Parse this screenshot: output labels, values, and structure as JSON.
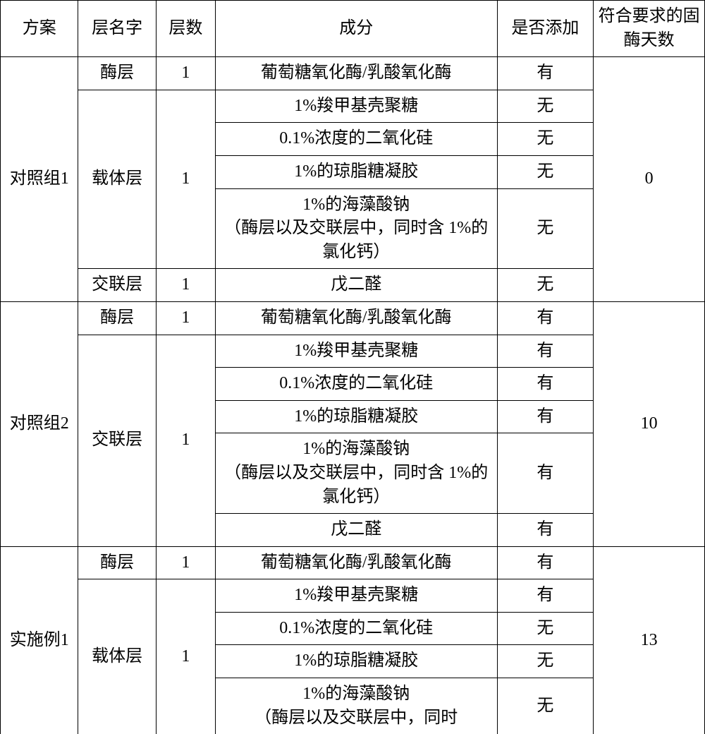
{
  "header": {
    "plan": "方案",
    "layer_name": "层名字",
    "layer_count": "层数",
    "component": "成分",
    "added": "是否添加",
    "days": "符合要求的固酶天数"
  },
  "groups": [
    {
      "plan": "对照组1",
      "days": "0",
      "layers": [
        {
          "name": "酶层",
          "count": "1",
          "rows": [
            {
              "component": "葡萄糖氧化酶/乳酸氧化酶",
              "added": "有"
            }
          ]
        },
        {
          "name": "载体层",
          "count": "1",
          "rows": [
            {
              "component": "1%羧甲基壳聚糖",
              "added": "无"
            },
            {
              "component": "0.1%浓度的二氧化硅",
              "added": "无"
            },
            {
              "component": "1%的琼脂糖凝胶",
              "added": "无"
            },
            {
              "component": "1%的海藻酸钠\n（酶层以及交联层中，同时含 1%的氯化钙）",
              "added": "无"
            }
          ]
        },
        {
          "name": "交联层",
          "count": "1",
          "rows": [
            {
              "component": "戊二醛",
              "added": "无"
            }
          ]
        }
      ]
    },
    {
      "plan": "对照组2",
      "days": "10",
      "layers": [
        {
          "name": "酶层",
          "count": "1",
          "rows": [
            {
              "component": "葡萄糖氧化酶/乳酸氧化酶",
              "added": "有"
            }
          ]
        },
        {
          "name": "交联层",
          "count": "1",
          "rows": [
            {
              "component": "1%羧甲基壳聚糖",
              "added": "有"
            },
            {
              "component": "0.1%浓度的二氧化硅",
              "added": "有"
            },
            {
              "component": "1%的琼脂糖凝胶",
              "added": "有"
            },
            {
              "component": "1%的海藻酸钠\n（酶层以及交联层中，同时含 1%的氯化钙）",
              "added": "有"
            },
            {
              "component": "戊二醛",
              "added": "有"
            }
          ]
        }
      ]
    },
    {
      "plan": "实施例1",
      "days": "13",
      "layers": [
        {
          "name": "酶层",
          "count": "1",
          "rows": [
            {
              "component": "葡萄糖氧化酶/乳酸氧化酶",
              "added": "有"
            }
          ]
        },
        {
          "name": "载体层",
          "count": "1",
          "rows": [
            {
              "component": "1%羧甲基壳聚糖",
              "added": "有"
            },
            {
              "component": "0.1%浓度的二氧化硅",
              "added": "无"
            },
            {
              "component": "1%的琼脂糖凝胶",
              "added": "无"
            },
            {
              "component": "1%的海藻酸钠\n（酶层以及交联层中，同时",
              "added": "无"
            }
          ]
        }
      ]
    }
  ],
  "last_row_open": true,
  "colors": {
    "border": "#000000",
    "text": "#000000",
    "background": "#ffffff"
  }
}
